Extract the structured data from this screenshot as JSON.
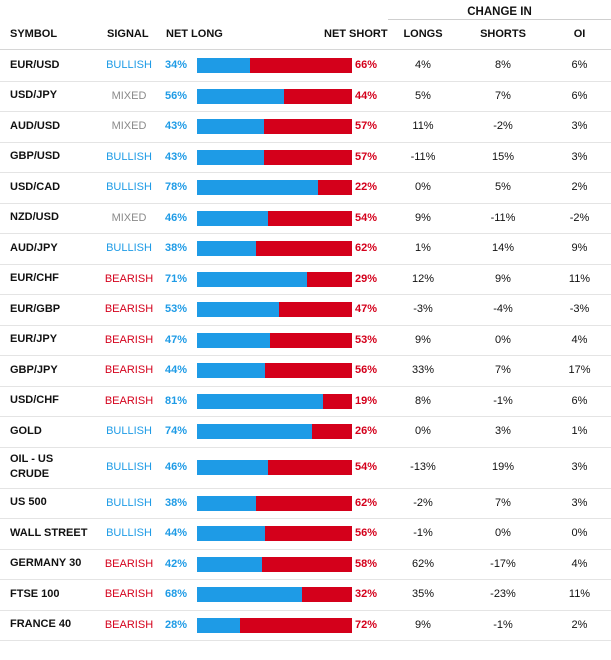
{
  "headers": {
    "change_in": "CHANGE IN",
    "symbol": "SYMBOL",
    "signal": "SIGNAL",
    "net_long": "NET LONG",
    "net_short": "NET SHORT",
    "longs": "LONGS",
    "shorts": "SHORTS",
    "oi": "OI"
  },
  "colors": {
    "bullish": "#1e9be6",
    "mixed": "#8a8a8a",
    "bearish": "#d4001b",
    "net_long_bar": "#1e9be6",
    "net_short_bar": "#d4001b"
  },
  "rows": [
    {
      "symbol": "EUR/USD",
      "signal": "BULLISH",
      "signal_type": "bullish",
      "net_long": "34%",
      "net_short": "66%",
      "long_pct": 34,
      "longs": "4%",
      "shorts": "8%",
      "oi": "6%"
    },
    {
      "symbol": "USD/JPY",
      "signal": "MIXED",
      "signal_type": "mixed",
      "net_long": "56%",
      "net_short": "44%",
      "long_pct": 56,
      "longs": "5%",
      "shorts": "7%",
      "oi": "6%"
    },
    {
      "symbol": "AUD/USD",
      "signal": "MIXED",
      "signal_type": "mixed",
      "net_long": "43%",
      "net_short": "57%",
      "long_pct": 43,
      "longs": "11%",
      "shorts": "-2%",
      "oi": "3%"
    },
    {
      "symbol": "GBP/USD",
      "signal": "BULLISH",
      "signal_type": "bullish",
      "net_long": "43%",
      "net_short": "57%",
      "long_pct": 43,
      "longs": "-11%",
      "shorts": "15%",
      "oi": "3%"
    },
    {
      "symbol": "USD/CAD",
      "signal": "BULLISH",
      "signal_type": "bullish",
      "net_long": "78%",
      "net_short": "22%",
      "long_pct": 78,
      "longs": "0%",
      "shorts": "5%",
      "oi": "2%"
    },
    {
      "symbol": "NZD/USD",
      "signal": "MIXED",
      "signal_type": "mixed",
      "net_long": "46%",
      "net_short": "54%",
      "long_pct": 46,
      "longs": "9%",
      "shorts": "-11%",
      "oi": "-2%"
    },
    {
      "symbol": "AUD/JPY",
      "signal": "BULLISH",
      "signal_type": "bullish",
      "net_long": "38%",
      "net_short": "62%",
      "long_pct": 38,
      "longs": "1%",
      "shorts": "14%",
      "oi": "9%"
    },
    {
      "symbol": "EUR/CHF",
      "signal": "BEARISH",
      "signal_type": "bearish",
      "net_long": "71%",
      "net_short": "29%",
      "long_pct": 71,
      "longs": "12%",
      "shorts": "9%",
      "oi": "11%"
    },
    {
      "symbol": "EUR/GBP",
      "signal": "BEARISH",
      "signal_type": "bearish",
      "net_long": "53%",
      "net_short": "47%",
      "long_pct": 53,
      "longs": "-3%",
      "shorts": "-4%",
      "oi": "-3%"
    },
    {
      "symbol": "EUR/JPY",
      "signal": "BEARISH",
      "signal_type": "bearish",
      "net_long": "47%",
      "net_short": "53%",
      "long_pct": 47,
      "longs": "9%",
      "shorts": "0%",
      "oi": "4%"
    },
    {
      "symbol": "GBP/JPY",
      "signal": "BEARISH",
      "signal_type": "bearish",
      "net_long": "44%",
      "net_short": "56%",
      "long_pct": 44,
      "longs": "33%",
      "shorts": "7%",
      "oi": "17%"
    },
    {
      "symbol": "USD/CHF",
      "signal": "BEARISH",
      "signal_type": "bearish",
      "net_long": "81%",
      "net_short": "19%",
      "long_pct": 81,
      "longs": "8%",
      "shorts": "-1%",
      "oi": "6%"
    },
    {
      "symbol": "GOLD",
      "signal": "BULLISH",
      "signal_type": "bullish",
      "net_long": "74%",
      "net_short": "26%",
      "long_pct": 74,
      "longs": "0%",
      "shorts": "3%",
      "oi": "1%"
    },
    {
      "symbol": "OIL - US CRUDE",
      "signal": "BULLISH",
      "signal_type": "bullish",
      "net_long": "46%",
      "net_short": "54%",
      "long_pct": 46,
      "longs": "-13%",
      "shorts": "19%",
      "oi": "3%"
    },
    {
      "symbol": "US 500",
      "signal": "BULLISH",
      "signal_type": "bullish",
      "net_long": "38%",
      "net_short": "62%",
      "long_pct": 38,
      "longs": "-2%",
      "shorts": "7%",
      "oi": "3%"
    },
    {
      "symbol": "WALL STREET",
      "signal": "BULLISH",
      "signal_type": "bullish",
      "net_long": "44%",
      "net_short": "56%",
      "long_pct": 44,
      "longs": "-1%",
      "shorts": "0%",
      "oi": "0%"
    },
    {
      "symbol": "GERMANY 30",
      "signal": "BEARISH",
      "signal_type": "bearish",
      "net_long": "42%",
      "net_short": "58%",
      "long_pct": 42,
      "longs": "62%",
      "shorts": "-17%",
      "oi": "4%"
    },
    {
      "symbol": "FTSE 100",
      "signal": "BEARISH",
      "signal_type": "bearish",
      "net_long": "68%",
      "net_short": "32%",
      "long_pct": 68,
      "longs": "35%",
      "shorts": "-23%",
      "oi": "11%"
    },
    {
      "symbol": "FRANCE 40",
      "signal": "BEARISH",
      "signal_type": "bearish",
      "net_long": "28%",
      "net_short": "72%",
      "long_pct": 28,
      "longs": "9%",
      "shorts": "-1%",
      "oi": "2%"
    }
  ]
}
